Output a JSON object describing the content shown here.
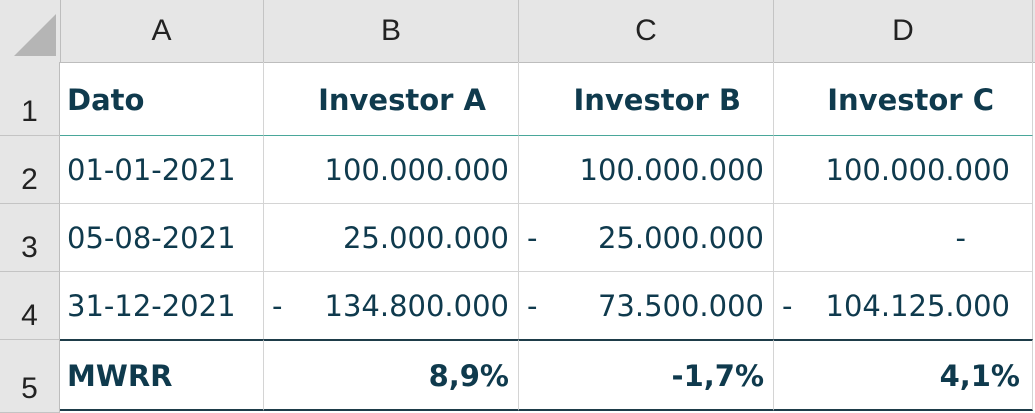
{
  "columns": [
    "A",
    "B",
    "C",
    "D"
  ],
  "rows": [
    "1",
    "2",
    "3",
    "4",
    "5"
  ],
  "header": {
    "dato": "Dato",
    "investor_a": "Investor A",
    "investor_b": "Investor B",
    "investor_c": "Investor C"
  },
  "data_rows": [
    {
      "date": "01-01-2021",
      "a": {
        "sign": "",
        "value": "100.000.000"
      },
      "b": {
        "sign": "",
        "value": "100.000.000"
      },
      "c": {
        "sign": "",
        "value": "100.000.000"
      }
    },
    {
      "date": "05-08-2021",
      "a": {
        "sign": "",
        "value": "25.000.000"
      },
      "b": {
        "sign": "-",
        "value": "25.000.000"
      },
      "c": {
        "sign": "",
        "value": "-"
      }
    },
    {
      "date": "31-12-2021",
      "a": {
        "sign": "-",
        "value": "134.800.000"
      },
      "b": {
        "sign": "-",
        "value": "73.500.000"
      },
      "c": {
        "sign": "-",
        "value": "104.125.000"
      }
    }
  ],
  "summary": {
    "label": "MWRR",
    "a": "8,9%",
    "b": "-1,7%",
    "c": "4,1%"
  },
  "colors": {
    "text": "#0f3a4d",
    "header_bg": "#e6e6e6",
    "accent_border": "#4aa79a"
  }
}
